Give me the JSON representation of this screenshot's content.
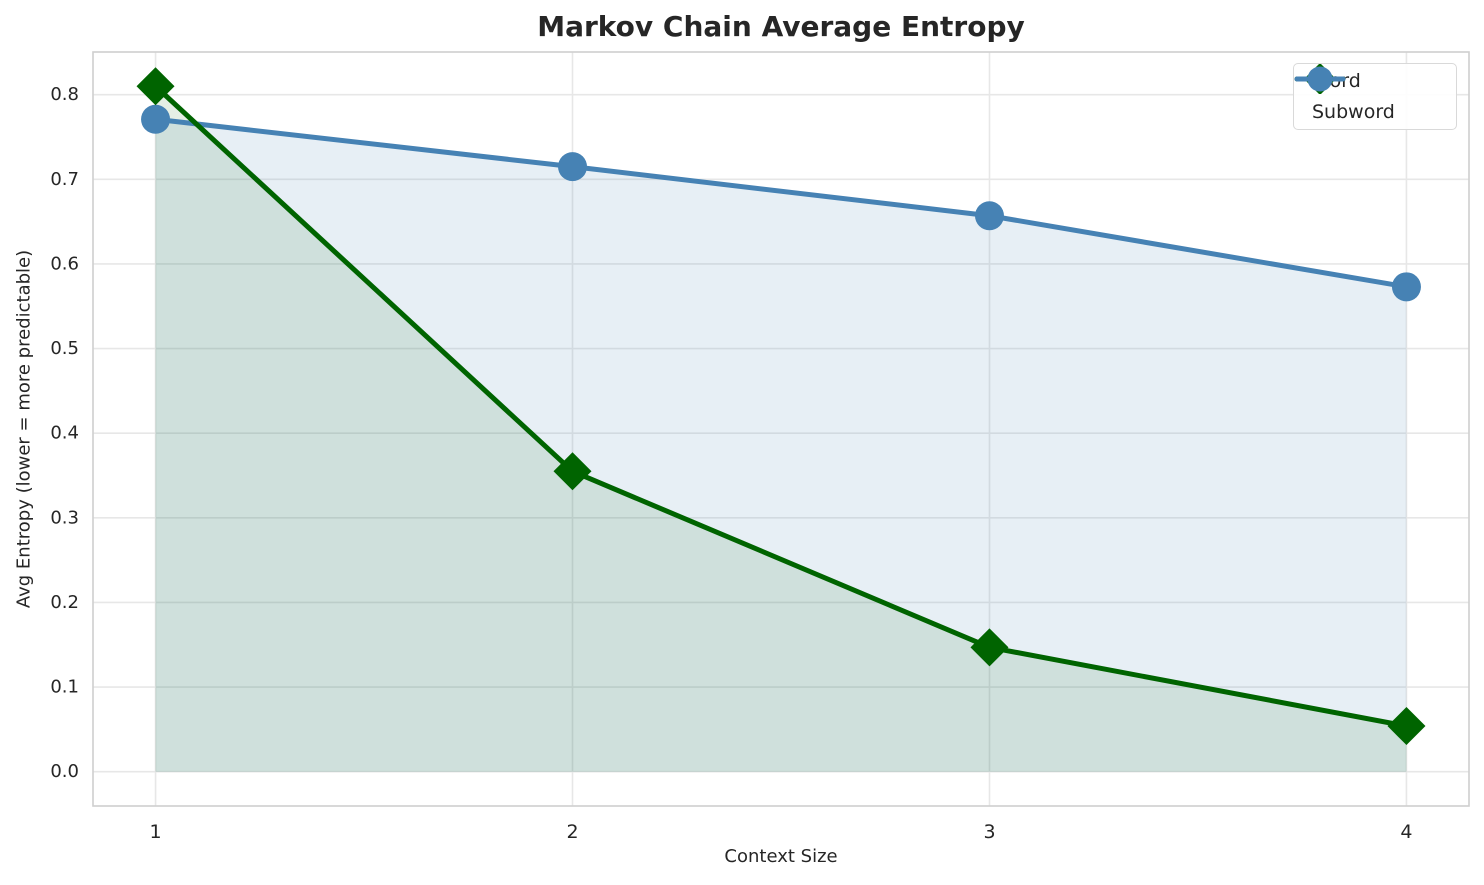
{
  "chart_data": {
    "type": "line",
    "title": "Markov Chain Average Entropy",
    "xlabel": "Context Size",
    "ylabel": "Avg Entropy (lower = more predictable)",
    "x": [
      1,
      2,
      3,
      4
    ],
    "series": [
      {
        "name": "Word",
        "color": "#006400",
        "marker": "diamond",
        "values": [
          0.81,
          0.355,
          0.147,
          0.054
        ],
        "area_fill": true,
        "fill_alpha": 0.1
      },
      {
        "name": "Subword",
        "color": "#4682b4",
        "marker": "circle",
        "values": [
          0.771,
          0.715,
          0.657,
          0.573
        ],
        "area_fill": true,
        "fill_alpha": 0.13
      }
    ],
    "xlim": [
      0.85,
      4.15
    ],
    "ylim": [
      -0.0405,
      0.8505
    ],
    "xticks": [
      1,
      2,
      3,
      4
    ],
    "ytick_labels": [
      "0.0",
      "0.1",
      "0.2",
      "0.3",
      "0.4",
      "0.5",
      "0.6",
      "0.7",
      "0.8"
    ],
    "yticks": [
      0.0,
      0.1,
      0.2,
      0.3,
      0.4,
      0.5,
      0.6,
      0.7,
      0.8
    ],
    "grid": true,
    "legend_position": "upper right",
    "colors": {
      "grid": "#e7e7e7",
      "spine": "#cfcfcf",
      "text": "#262626",
      "background": "#ffffff",
      "legend_border": "#d9d9d9"
    }
  }
}
